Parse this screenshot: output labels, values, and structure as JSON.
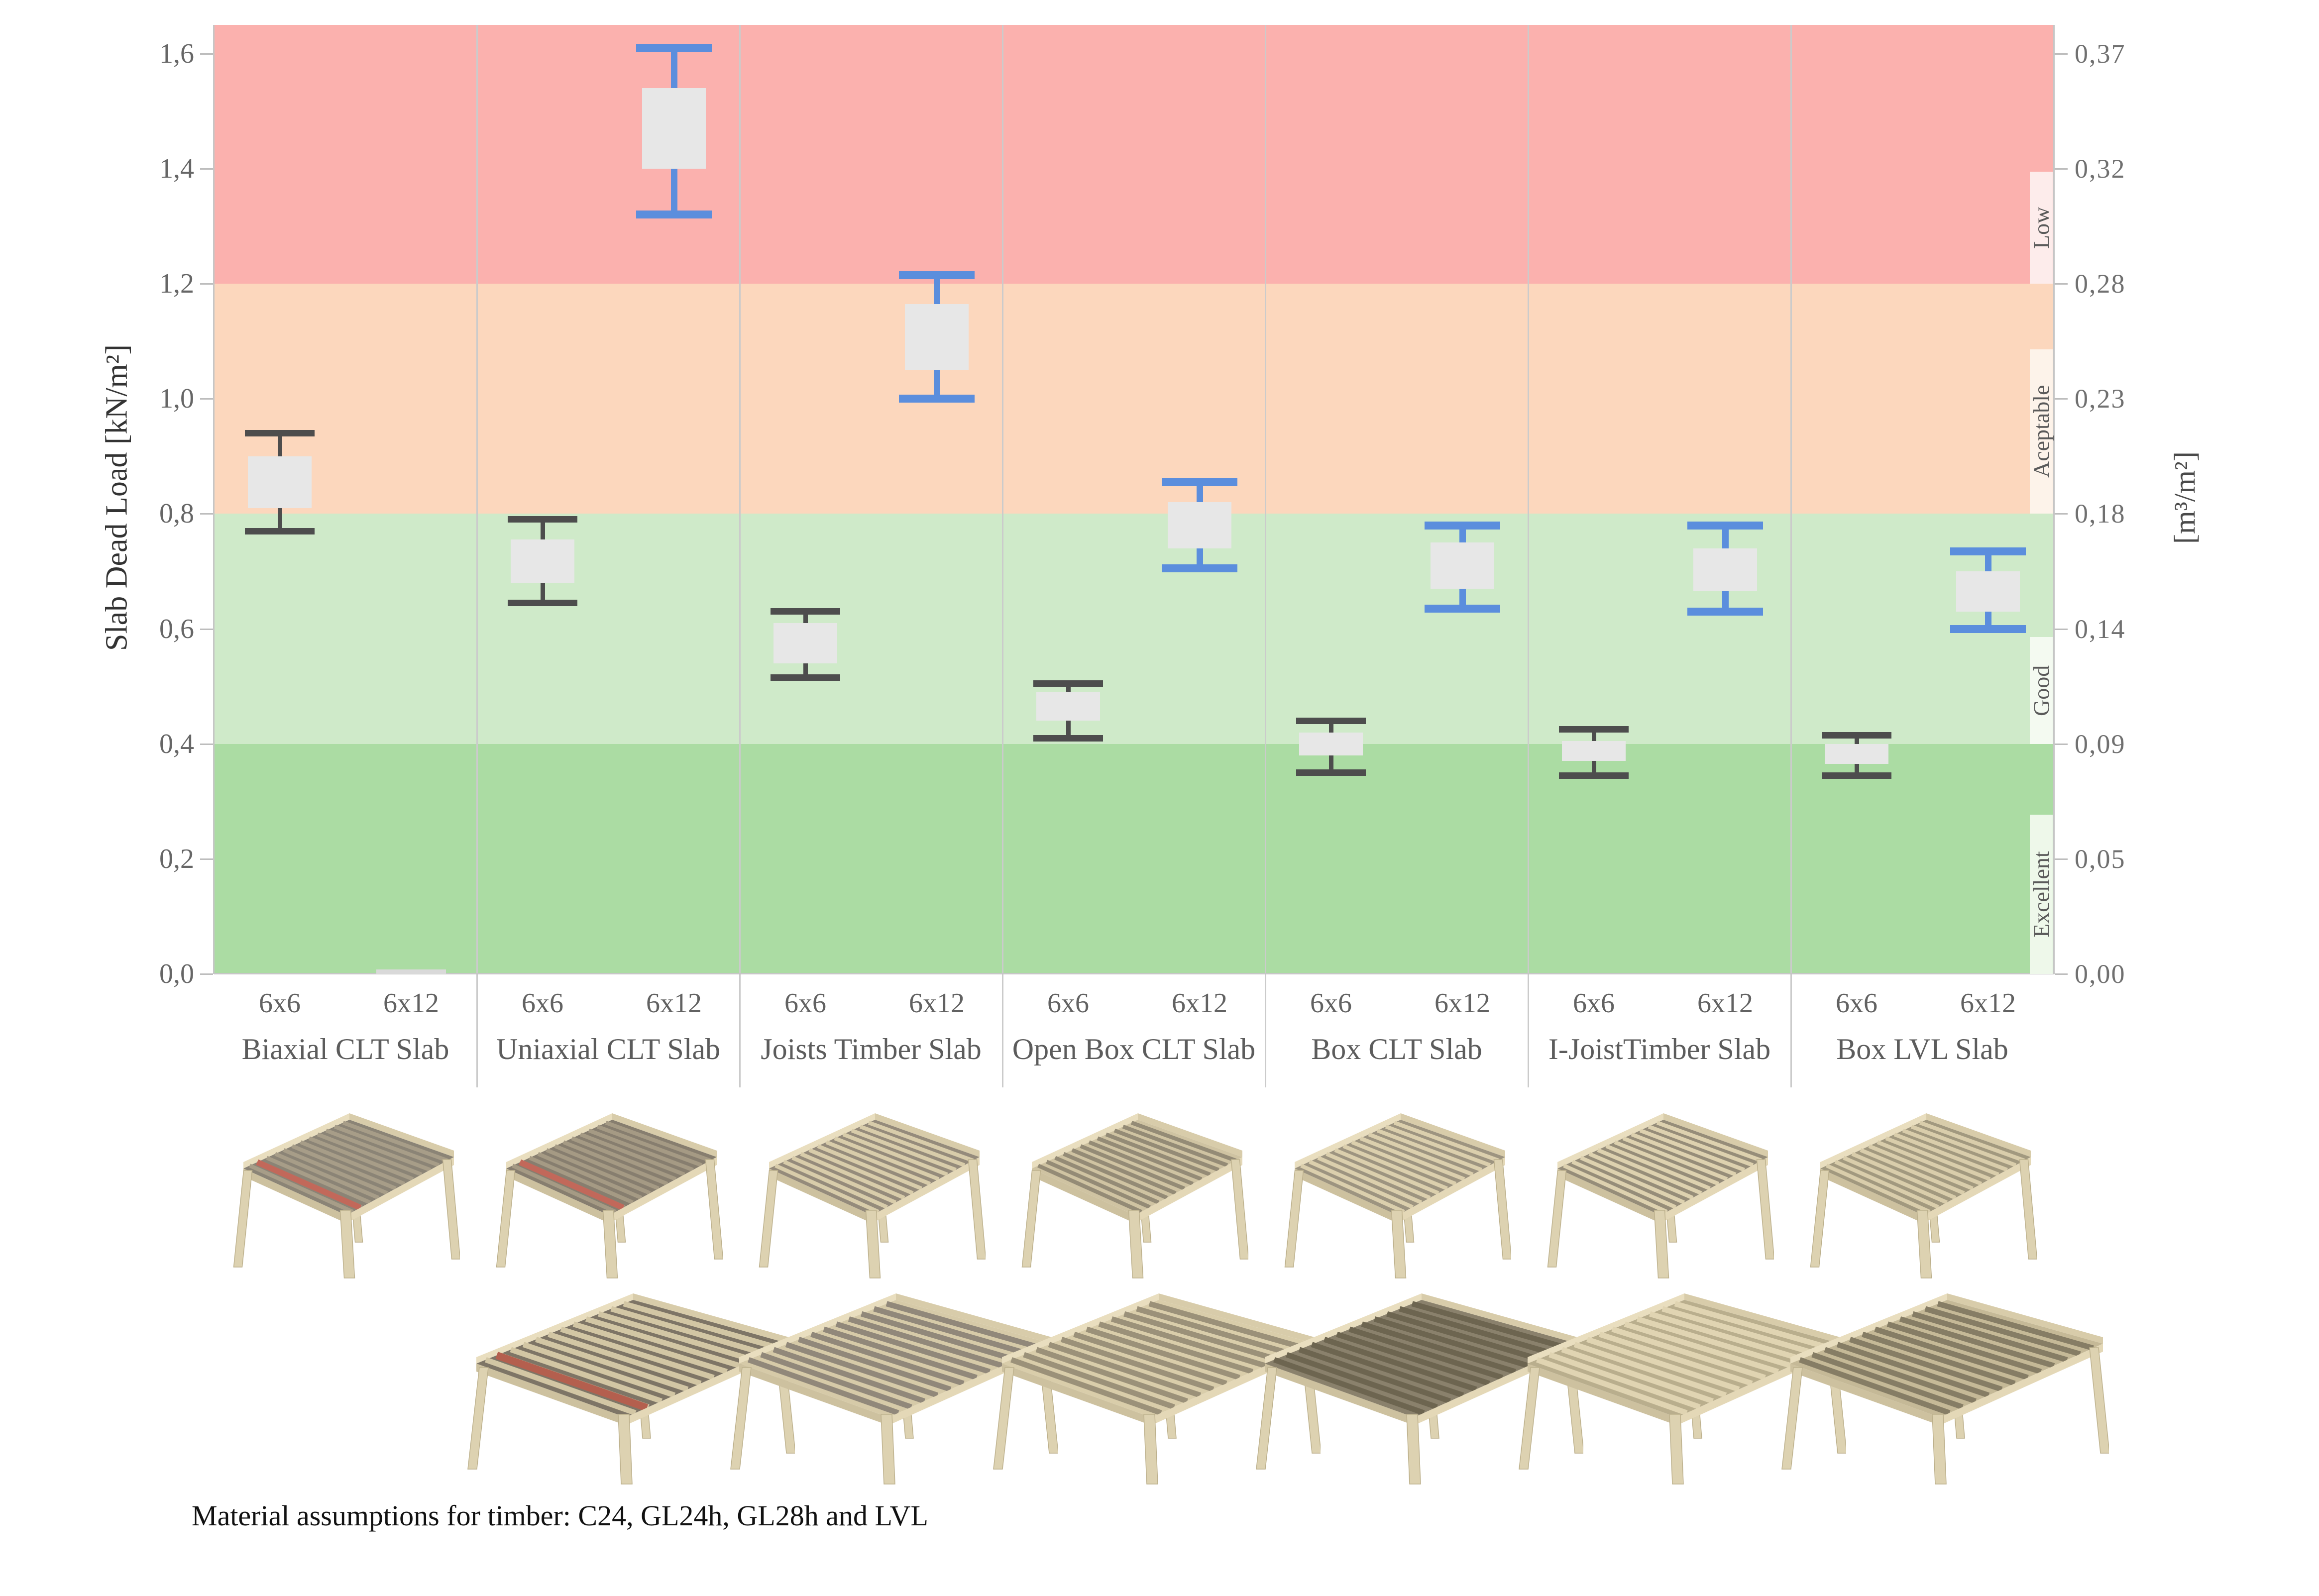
{
  "caption": "Material assumptions for timber: C24, GL24h, GL28h and LVL",
  "chart_data": {
    "type": "boxplot",
    "title": "",
    "ylabel_left": "Slab Dead Load [kN/m²]",
    "ylabel_right": "[m³/m²]",
    "ylim": [
      0,
      1.65
    ],
    "grid": false,
    "legend_position": "none",
    "yticks_left": {
      "values": [
        0,
        0.2,
        0.4,
        0.6,
        0.8,
        1.0,
        1.2,
        1.4,
        1.6
      ],
      "labels": [
        "0,0",
        "0,2",
        "0,4",
        "0,6",
        "0,8",
        "1,0",
        "1,2",
        "1,4",
        "1,6"
      ]
    },
    "yticks_right": {
      "values": [
        0,
        0.2,
        0.4,
        0.6,
        0.8,
        1.0,
        1.2,
        1.4,
        1.6
      ],
      "labels": [
        "0,00",
        "0,05",
        "0,09",
        "0,14",
        "0,18",
        "0,23",
        "0,28",
        "0,32",
        "0,37"
      ]
    },
    "bands": [
      {
        "label": "Excellent",
        "from": 0.0,
        "to": 0.4,
        "color": "#abdca3",
        "label_bg": "#eef8ea",
        "label_box_h": 320
      },
      {
        "label": "Good",
        "from": 0.4,
        "to": 0.8,
        "color": "#cfeac9",
        "label_bg": "#f4faf1",
        "label_box_h": 215
      },
      {
        "label": "Aceptable",
        "from": 0.8,
        "to": 1.2,
        "color": "#fcd7bd",
        "label_bg": "#fdf3ea",
        "label_box_h": 330
      },
      {
        "label": "Low",
        "from": 1.2,
        "to": 1.65,
        "color": "#fbb1ae",
        "label_bg": "#fdeceb",
        "label_box_h": 225
      }
    ],
    "series_colors": {
      "6x6": "#4d4d4d",
      "6x12": "#5b8edd",
      "box_fill": "#e7e7e7",
      "flat_mark": "#d9d9d9"
    },
    "size_labels": [
      "6x6",
      "6x12"
    ],
    "groups": [
      {
        "label": "Biaxial CLT Slab",
        "boxes": [
          {
            "size": "6x6",
            "whisker_low": 0.77,
            "box_low": 0.81,
            "box_high": 0.9,
            "whisker_high": 0.94
          },
          {
            "size": "6x12",
            "flat_mark": 0.0
          }
        ]
      },
      {
        "label": "Uniaxial CLT Slab",
        "boxes": [
          {
            "size": "6x6",
            "whisker_low": 0.645,
            "box_low": 0.68,
            "box_high": 0.755,
            "whisker_high": 0.79
          },
          {
            "size": "6x12",
            "whisker_low": 1.32,
            "box_low": 1.4,
            "box_high": 1.54,
            "whisker_high": 1.61
          }
        ]
      },
      {
        "label": "Joists Timber Slab",
        "boxes": [
          {
            "size": "6x6",
            "whisker_low": 0.515,
            "box_low": 0.54,
            "box_high": 0.61,
            "whisker_high": 0.63
          },
          {
            "size": "6x12",
            "whisker_low": 1.0,
            "box_low": 1.05,
            "box_high": 1.165,
            "whisker_high": 1.215
          }
        ]
      },
      {
        "label": "Open Box CLT Slab",
        "boxes": [
          {
            "size": "6x6",
            "whisker_low": 0.41,
            "box_low": 0.44,
            "box_high": 0.49,
            "whisker_high": 0.505
          },
          {
            "size": "6x12",
            "whisker_low": 0.705,
            "box_low": 0.74,
            "box_high": 0.82,
            "whisker_high": 0.855
          }
        ]
      },
      {
        "label": "Box CLT Slab",
        "boxes": [
          {
            "size": "6x6",
            "whisker_low": 0.35,
            "box_low": 0.38,
            "box_high": 0.42,
            "whisker_high": 0.44
          },
          {
            "size": "6x12",
            "whisker_low": 0.635,
            "box_low": 0.67,
            "box_high": 0.75,
            "whisker_high": 0.78
          }
        ]
      },
      {
        "label": "I-JoistTimber Slab",
        "boxes": [
          {
            "size": "6x6",
            "whisker_low": 0.345,
            "box_low": 0.37,
            "box_high": 0.405,
            "whisker_high": 0.425
          },
          {
            "size": "6x12",
            "whisker_low": 0.63,
            "box_low": 0.665,
            "box_high": 0.74,
            "whisker_high": 0.78
          }
        ]
      },
      {
        "label": "Box LVL Slab",
        "boxes": [
          {
            "size": "6x6",
            "whisker_low": 0.345,
            "box_low": 0.365,
            "box_high": 0.4,
            "whisker_high": 0.415
          },
          {
            "size": "6x12",
            "whisker_low": 0.6,
            "box_low": 0.63,
            "box_high": 0.7,
            "whisker_high": 0.735
          }
        ]
      }
    ]
  },
  "renders": {
    "row1": [
      {
        "group": "Biaxial CLT Slab",
        "deck": "#8b8476",
        "stripe": "#a79d88",
        "accent": "#c2685a"
      },
      {
        "group": "Uniaxial CLT Slab",
        "deck": "#877e6f",
        "stripe": "#a59a84",
        "accent": "#c2685a"
      },
      {
        "group": "Joists Timber Slab",
        "deck": "#958b7b",
        "stripe": "#d8ccaa"
      },
      {
        "group": "Open Box CLT Slab",
        "deck": "#cfc3a2",
        "stripe": "#948b76"
      },
      {
        "group": "Box CLT Slab",
        "deck": "#9d9480",
        "stripe": "#dbcfad"
      },
      {
        "group": "I-JoistTimber Slab",
        "deck": "#968d79",
        "stripe": "#ddd1af"
      },
      {
        "group": "Box LVL Slab",
        "deck": "#a2997f",
        "stripe": "#d9cdab"
      }
    ],
    "row2": [
      {
        "group": "Uniaxial CLT Slab",
        "deck": "#7e7566",
        "stripe": "#d2c6a4",
        "accent": "#b45f4e"
      },
      {
        "group": "Joists Timber Slab",
        "deck": "#d6caa8",
        "stripe": "#91887a"
      },
      {
        "group": "Open Box CLT Slab",
        "deck": "#d9cdaa",
        "stripe": "#9b9179"
      },
      {
        "group": "Box CLT Slab",
        "deck": "#8a816c",
        "stripe": "#6d6550"
      },
      {
        "group": "I-JoistTimber Slab",
        "deck": "#b9ae8d",
        "stripe": "#e0d4b2"
      },
      {
        "group": "Box LVL Slab",
        "deck": "#c5b997",
        "stripe": "#867d65"
      }
    ]
  }
}
